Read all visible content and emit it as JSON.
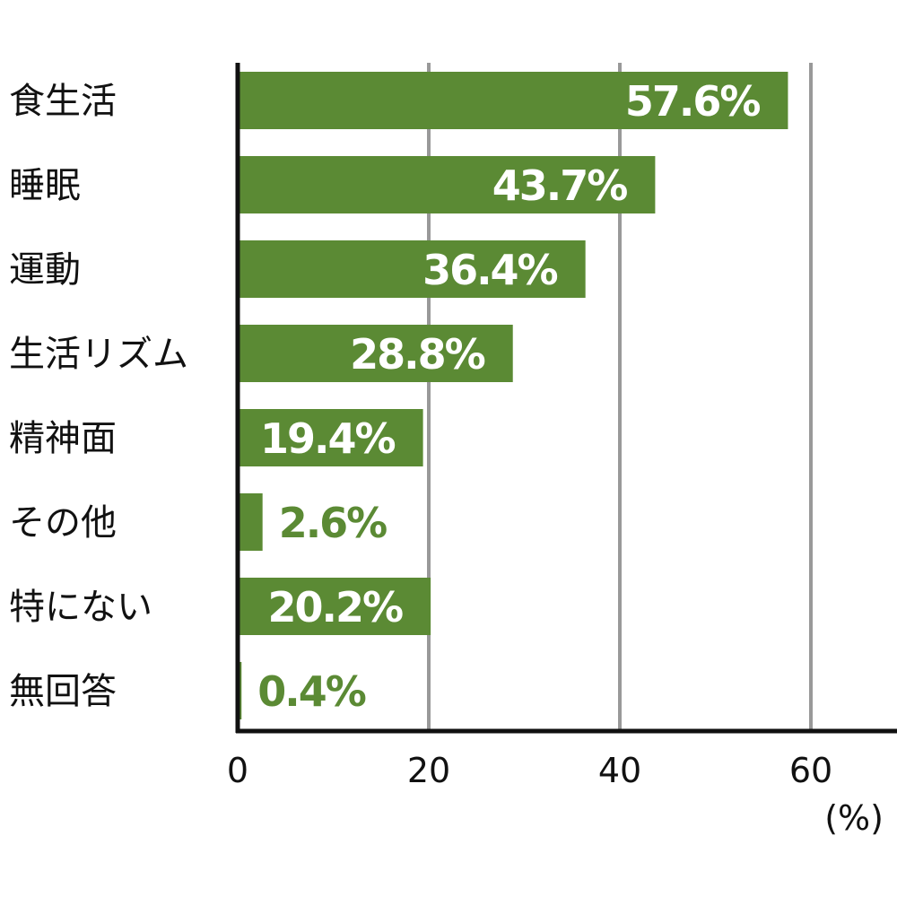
{
  "chart_data": {
    "type": "bar",
    "orientation": "horizontal",
    "categories": [
      "食生活",
      "睡眠",
      "運動",
      "生活リズム",
      "精神面",
      "その他",
      "特にない",
      "無回答"
    ],
    "values": [
      57.6,
      43.7,
      36.4,
      28.8,
      19.4,
      2.6,
      20.2,
      0.4
    ],
    "value_labels": [
      "57.6%",
      "43.7%",
      "36.4%",
      "28.8%",
      "19.4%",
      "2.6%",
      "20.2%",
      "0.4%"
    ],
    "xticks": [
      "0",
      "20",
      "40",
      "60"
    ],
    "xtick_values": [
      0,
      20,
      40,
      60
    ],
    "xunit": "(%)",
    "xlim": [
      0,
      68
    ],
    "grid": true,
    "legend": "none",
    "bar_color": "#5b8a34",
    "label_color_inside": "#ffffff",
    "label_color_outside": "#5b8a34",
    "grid_color": "#999999",
    "axis_color": "#111111"
  }
}
